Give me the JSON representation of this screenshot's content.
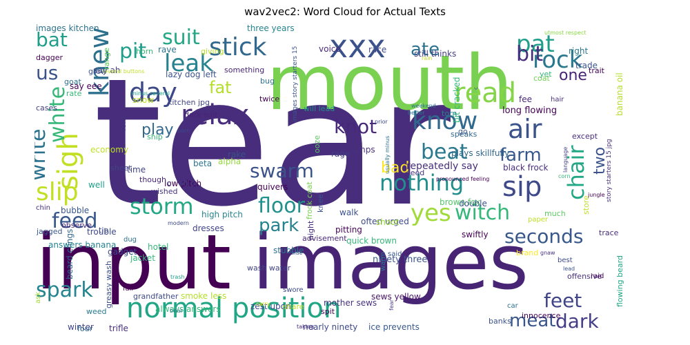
{
  "chart_data": {
    "type": "wordcloud",
    "title": "wav2vec2: Word Cloud for Actual Texts",
    "words": [
      {
        "text": "tear",
        "weight": 100,
        "color": "#472d7b"
      },
      {
        "text": "input",
        "weight": 88,
        "color": "#440154"
      },
      {
        "text": "images",
        "weight": 86,
        "color": "#482475"
      },
      {
        "text": "mouth",
        "weight": 72,
        "color": "#7ad151"
      },
      {
        "text": "normal position",
        "weight": 36,
        "color": "#21a685"
      },
      {
        "text": "xxx",
        "weight": 34,
        "color": "#3b528b"
      },
      {
        "text": "relax",
        "weight": 30,
        "color": "#472d7b"
      },
      {
        "text": "read",
        "weight": 30,
        "color": "#86d549"
      },
      {
        "text": "stick",
        "weight": 28,
        "color": "#31688e"
      },
      {
        "text": "sigh",
        "weight": 28,
        "color": "#c2df23"
      },
      {
        "text": "day",
        "weight": 28,
        "color": "#3e4989"
      },
      {
        "text": "knew",
        "weight": 26,
        "color": "#2d708e"
      },
      {
        "text": "leak",
        "weight": 26,
        "color": "#26828e"
      },
      {
        "text": "know",
        "weight": 26,
        "color": "#31688e"
      },
      {
        "text": "air",
        "weight": 26,
        "color": "#3b528b"
      },
      {
        "text": "sip",
        "weight": 26,
        "color": "#3e4989"
      },
      {
        "text": "slip",
        "weight": 26,
        "color": "#c2df23"
      },
      {
        "text": "rock",
        "weight": 26,
        "color": "#2a788e"
      },
      {
        "text": "pat",
        "weight": 26,
        "color": "#1f9e89"
      },
      {
        "text": "swarm",
        "weight": 24,
        "color": "#3b528b"
      },
      {
        "text": "storm",
        "weight": 24,
        "color": "#22a884"
      },
      {
        "text": "floor",
        "weight": 24,
        "color": "#21918c"
      },
      {
        "text": "witch",
        "weight": 24,
        "color": "#35b779"
      },
      {
        "text": "yes",
        "weight": 24,
        "color": "#a0da39"
      },
      {
        "text": "beat",
        "weight": 24,
        "color": "#2a788e"
      },
      {
        "text": "nothing",
        "weight": 24,
        "color": "#228d8d"
      },
      {
        "text": "chair",
        "weight": 24,
        "color": "#22a884"
      },
      {
        "text": "seconds",
        "weight": 24,
        "color": "#38588c"
      },
      {
        "text": "feet",
        "weight": 24,
        "color": "#414487"
      },
      {
        "text": "spark",
        "weight": 22,
        "color": "#25848e"
      },
      {
        "text": "feed",
        "weight": 22,
        "color": "#38588c"
      },
      {
        "text": "park",
        "weight": 22,
        "color": "#26828e"
      },
      {
        "text": "knot",
        "weight": 22,
        "color": "#482878"
      },
      {
        "text": "suit",
        "weight": 22,
        "color": "#22a884"
      },
      {
        "text": "pit",
        "weight": 22,
        "color": "#1f9e89"
      },
      {
        "text": "write",
        "weight": 22,
        "color": "#2c728e"
      },
      {
        "text": "white",
        "weight": 20,
        "color": "#35b779"
      },
      {
        "text": "bit",
        "weight": 20,
        "color": "#472d7b"
      },
      {
        "text": "ate",
        "weight": 20,
        "color": "#2c728e"
      },
      {
        "text": "farm",
        "weight": 20,
        "color": "#38588c"
      },
      {
        "text": "dark",
        "weight": 20,
        "color": "#433e85"
      },
      {
        "text": "meat",
        "weight": 20,
        "color": "#39568c"
      },
      {
        "text": "us",
        "weight": 20,
        "color": "#3b528b"
      },
      {
        "text": "bat",
        "weight": 20,
        "color": "#1f9e89"
      },
      {
        "text": "fat",
        "weight": 20,
        "color": "#b5de2b"
      },
      {
        "text": "play",
        "weight": 18,
        "color": "#31688e"
      },
      {
        "text": "one",
        "weight": 18,
        "color": "#482475"
      },
      {
        "text": "two",
        "weight": 18,
        "color": "#3b528b"
      },
      {
        "text": "bad",
        "weight": 18,
        "color": "#fde725"
      },
      {
        "text": "repeatedly say",
        "weight": 12,
        "color": "#472d7b"
      },
      {
        "text": "three years",
        "weight": 11,
        "color": "#25848e"
      },
      {
        "text": "images kitchen",
        "weight": 10,
        "color": "#2c728e"
      },
      {
        "text": "say ah",
        "weight": 10,
        "color": "#433e85"
      },
      {
        "text": "say eee",
        "weight": 9,
        "color": "#440154"
      },
      {
        "text": "lazy dog left",
        "weight": 10,
        "color": "#3b528b"
      },
      {
        "text": "kitchen jpg",
        "weight": 9,
        "color": "#414487"
      },
      {
        "text": "dark suit",
        "weight": 9,
        "color": "#482475"
      },
      {
        "text": "ancient black years old",
        "weight": 9,
        "color": "#2a788e"
      },
      {
        "text": "black frock",
        "weight": 10,
        "color": "#472d7b"
      },
      {
        "text": "long flowing",
        "weight": 10,
        "color": "#440154"
      },
      {
        "text": "plays skillfully",
        "weight": 10,
        "color": "#31688e"
      },
      {
        "text": "fox jumps",
        "weight": 10,
        "color": "#46327e"
      },
      {
        "text": "still thinks",
        "weight": 10,
        "color": "#433e85"
      },
      {
        "text": "banana oil",
        "weight": 10,
        "color": "#b5de2b"
      },
      {
        "text": "bit cracked",
        "weight": 10,
        "color": "#35b779"
      },
      {
        "text": "will lead",
        "weight": 9,
        "color": "#228d8d"
      },
      {
        "text": "except",
        "weight": 10,
        "color": "#472d7b"
      },
      {
        "text": "swiftly",
        "weight": 10,
        "color": "#440154"
      },
      {
        "text": "low pitch",
        "weight": 10,
        "color": "#440154"
      },
      {
        "text": "high pitch",
        "weight": 10,
        "color": "#25848e"
      },
      {
        "text": "quick brown",
        "weight": 10,
        "color": "#35b779"
      },
      {
        "text": "ninety three",
        "weight": 10,
        "color": "#3b528b"
      },
      {
        "text": "often urged",
        "weight": 10,
        "color": "#3e4989"
      },
      {
        "text": "brown fox",
        "weight": 10,
        "color": "#54c568"
      },
      {
        "text": "beard clings",
        "weight": 10,
        "color": "#31688e"
      },
      {
        "text": "answers banana",
        "weight": 10,
        "color": "#26828e"
      },
      {
        "text": "smoke less",
        "weight": 10,
        "color": "#b5de2b"
      },
      {
        "text": "always answers",
        "weight": 10,
        "color": "#35b779"
      },
      {
        "text": "zest upon",
        "weight": 10,
        "color": "#3e4989"
      },
      {
        "text": "nearly ninety",
        "weight": 10,
        "color": "#3e4989"
      },
      {
        "text": "ice prevents",
        "weight": 10,
        "color": "#38588c"
      },
      {
        "text": "mother sews",
        "weight": 9,
        "color": "#46327e"
      },
      {
        "text": "sews yellow",
        "weight": 9,
        "color": "#481668"
      },
      {
        "text": "wash water",
        "weight": 9,
        "color": "#414487"
      },
      {
        "text": "flowing beard",
        "weight": 9,
        "color": "#22a884"
      },
      {
        "text": "destroy confidence",
        "weight": 9,
        "color": "#38588c"
      },
      {
        "text": "greasy wash",
        "weight": 9,
        "color": "#3b528b"
      },
      {
        "text": "grandfather",
        "weight": 9,
        "color": "#3e4989"
      },
      {
        "text": "frock coat",
        "weight": 9,
        "color": "#7ad151"
      },
      {
        "text": "story starters 15 jpg",
        "weight": 8,
        "color": "#46327e"
      },
      {
        "text": "images story starters 15",
        "weight": 8,
        "color": "#3b528b"
      },
      {
        "text": "pronounced feeling",
        "weight": 7,
        "color": "#440154"
      },
      {
        "text": "several buttons",
        "weight": 7,
        "color": "#bddf26"
      },
      {
        "text": "minus several",
        "weight": 7,
        "color": "#1fa188"
      },
      {
        "text": "usually minus",
        "weight": 7,
        "color": "#2c728e"
      },
      {
        "text": "utmost respect",
        "weight": 7,
        "color": "#8bd646"
      },
      {
        "text": "small organ",
        "weight": 8,
        "color": "#26828e"
      },
      {
        "text": "advisement",
        "weight": 9,
        "color": "#482878"
      },
      {
        "text": "innocence",
        "weight": 9,
        "color": "#440154"
      },
      {
        "text": "offensive",
        "weight": 9,
        "color": "#46327e"
      },
      {
        "text": "quivers",
        "weight": 10,
        "color": "#440154"
      },
      {
        "text": "stubble",
        "weight": 9,
        "color": "#2c728e"
      },
      {
        "text": "pitting",
        "weight": 9,
        "color": "#440154"
      },
      {
        "text": "trouble",
        "weight": 10,
        "color": "#3e4989"
      },
      {
        "text": "gadget",
        "weight": 10,
        "color": "#3e4989"
      },
      {
        "text": "jacket",
        "weight": 10,
        "color": "#35b779"
      },
      {
        "text": "hotel",
        "weight": 10,
        "color": "#35b779"
      },
      {
        "text": "dresses",
        "weight": 10,
        "color": "#414487"
      },
      {
        "text": "winter",
        "weight": 10,
        "color": "#414487"
      },
      {
        "text": "trifle",
        "weight": 10,
        "color": "#472d7b"
      },
      {
        "text": "shoot",
        "weight": 10,
        "color": "#9fda3a"
      },
      {
        "text": "bubble",
        "weight": 9,
        "color": "#39568c"
      },
      {
        "text": "observe",
        "weight": 9,
        "color": "#482878"
      },
      {
        "text": "jagged",
        "weight": 10,
        "color": "#38588c"
      },
      {
        "text": "economy",
        "weight": 9,
        "color": "#bddf26"
      },
      {
        "text": "something",
        "weight": 9,
        "color": "#482475"
      },
      {
        "text": "dagger",
        "weight": 9,
        "color": "#440154"
      },
      {
        "text": "giving",
        "weight": 9,
        "color": "#b5de2b"
      },
      {
        "text": "speaks",
        "weight": 10,
        "color": "#31688e"
      },
      {
        "text": "double",
        "weight": 9,
        "color": "#3b528b"
      },
      {
        "text": "wished",
        "weight": 9,
        "color": "#46327e"
      },
      {
        "text": "though",
        "weight": 10,
        "color": "#482878"
      },
      {
        "text": "beta",
        "weight": 10,
        "color": "#2c728e"
      },
      {
        "text": "alpha",
        "weight": 9,
        "color": "#95d840"
      },
      {
        "text": "sheet",
        "weight": 10,
        "color": "#414487"
      },
      {
        "text": "right",
        "weight": 10,
        "color": "#2a788e"
      },
      {
        "text": "trade",
        "weight": 9,
        "color": "#3b528b"
      },
      {
        "text": "coat",
        "weight": 9,
        "color": "#73d056"
      },
      {
        "text": "trait",
        "weight": 9,
        "color": "#440154"
      },
      {
        "text": "horn",
        "weight": 10,
        "color": "#35b779"
      },
      {
        "text": "rave",
        "weight": 10,
        "color": "#2c728e"
      },
      {
        "text": "voice",
        "weight": 10,
        "color": "#482878"
      },
      {
        "text": "race",
        "weight": 9,
        "color": "#3e4989"
      },
      {
        "text": "yet",
        "weight": 10,
        "color": "#35b779"
      },
      {
        "text": "fee",
        "weight": 9,
        "color": "#482878"
      },
      {
        "text": "hair",
        "weight": 9,
        "color": "#46327e"
      },
      {
        "text": "grow",
        "weight": 9,
        "color": "#3b528b"
      },
      {
        "text": "goat",
        "weight": 9,
        "color": "#2c728e"
      },
      {
        "text": "range",
        "weight": 9,
        "color": "#5ec962"
      },
      {
        "text": "rate",
        "weight": 9,
        "color": "#35b779"
      },
      {
        "text": "cases",
        "weight": 9,
        "color": "#433e85"
      },
      {
        "text": "bug",
        "weight": 9,
        "color": "#2c728e"
      },
      {
        "text": "twice",
        "weight": 10,
        "color": "#440154"
      },
      {
        "text": "snow",
        "weight": 9,
        "color": "#c2df23"
      },
      {
        "text": "form",
        "weight": 9,
        "color": "#46327e"
      },
      {
        "text": "ship",
        "weight": 10,
        "color": "#35b779"
      },
      {
        "text": "rake",
        "weight": 10,
        "color": "#3b528b"
      },
      {
        "text": "rage",
        "weight": 9,
        "color": "#433e85"
      },
      {
        "text": "seed",
        "weight": 9,
        "color": "#46327e"
      },
      {
        "text": "go",
        "weight": 9,
        "color": "#39568c"
      },
      {
        "text": "torn",
        "weight": 9,
        "color": "#25848e"
      },
      {
        "text": "ooze",
        "weight": 9,
        "color": "#5ec962"
      },
      {
        "text": "knee",
        "weight": 9,
        "color": "#3b528b"
      },
      {
        "text": "night",
        "weight": 10,
        "color": "#472d7b"
      },
      {
        "text": "walk",
        "weight": 10,
        "color": "#3b528b"
      },
      {
        "text": "well",
        "weight": 10,
        "color": "#1f9e89"
      },
      {
        "text": "time",
        "weight": 9,
        "color": "#414487"
      },
      {
        "text": "tip",
        "weight": 8,
        "color": "#3e4989"
      },
      {
        "text": "chin",
        "weight": 9,
        "color": "#46327e"
      },
      {
        "text": "trace",
        "weight": 9,
        "color": "#472d7b"
      },
      {
        "text": "much",
        "weight": 9,
        "color": "#5ec962"
      },
      {
        "text": "store",
        "weight": 8,
        "color": "#c2df23"
      },
      {
        "text": "raid",
        "weight": 8,
        "color": "#440154"
      },
      {
        "text": "best",
        "weight": 8,
        "color": "#3e4989"
      },
      {
        "text": "paper",
        "weight": 8,
        "color": "#bddf26"
      },
      {
        "text": "warm",
        "weight": 8,
        "color": "#2a788e"
      },
      {
        "text": "said",
        "weight": 9,
        "color": "#39568c"
      },
      {
        "text": "spit",
        "weight": 9,
        "color": "#440154"
      },
      {
        "text": "share",
        "weight": 8,
        "color": "#bddf26"
      },
      {
        "text": "swore",
        "weight": 9,
        "color": "#3e4989"
      },
      {
        "text": "weed",
        "weight": 9,
        "color": "#2a788e"
      },
      {
        "text": "four",
        "weight": 9,
        "color": "#31688e"
      },
      {
        "text": "banks",
        "weight": 8,
        "color": "#3b528b"
      },
      {
        "text": "car",
        "weight": 8,
        "color": "#2c728e"
      },
      {
        "text": "fair",
        "weight": 8,
        "color": "#440154"
      },
      {
        "text": "dug",
        "weight": 8,
        "color": "#2c728e"
      },
      {
        "text": "ask",
        "weight": 6,
        "color": "#a0da39"
      },
      {
        "text": "briar",
        "weight": 6,
        "color": "#2a788e"
      },
      {
        "text": "trash",
        "weight": 6,
        "color": "#1f9e89"
      },
      {
        "text": "modern",
        "weight": 6,
        "color": "#3e4989"
      },
      {
        "text": "side",
        "weight": 6,
        "color": "#3b528b"
      },
      {
        "text": "taking",
        "weight": 6,
        "color": "#482878"
      },
      {
        "text": "carry",
        "weight": 6,
        "color": "#e5e419"
      },
      {
        "text": "fear",
        "weight": 6,
        "color": "#443983"
      },
      {
        "text": "lead",
        "weight": 6,
        "color": "#3b528b"
      },
      {
        "text": "gnaw",
        "weight": 6,
        "color": "#46327e"
      },
      {
        "text": "jungle",
        "weight": 6,
        "color": "#440154"
      },
      {
        "text": "corn",
        "weight": 6,
        "color": "#35b779"
      },
      {
        "text": "language",
        "weight": 6,
        "color": "#433e85"
      },
      {
        "text": "prior",
        "weight": 6,
        "color": "#3e4989"
      },
      {
        "text": "better",
        "weight": 6,
        "color": "#2a788e"
      },
      {
        "text": "weekend",
        "weight": 6,
        "color": "#2c728e"
      },
      {
        "text": "born",
        "weight": 6,
        "color": "#3e4989"
      },
      {
        "text": "rain",
        "weight": 6,
        "color": "#c2df23"
      },
      {
        "text": "c",
        "weight": 9,
        "color": "#3b528b"
      },
      {
        "text": "c",
        "weight": 9,
        "color": "#3b528b"
      },
      {
        "text": "ah p",
        "weight": 9,
        "color": "#433e85"
      },
      {
        "text": "brand",
        "weight": 6,
        "color": "#fde725"
      }
    ]
  }
}
